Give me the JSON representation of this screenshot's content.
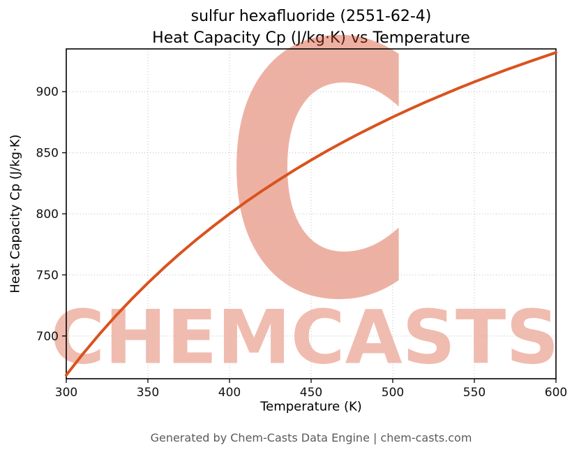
{
  "footer": "Generated by Chem-Casts Data Engine | chem-casts.com",
  "watermark": {
    "letter": "C",
    "text": "CHEMCASTS",
    "letter_color": "rgba(213,70,35,0.42)",
    "text_color": "rgba(213,70,35,0.36)"
  },
  "chart_data": {
    "type": "line",
    "title_line1": "sulfur hexafluoride (2551-62-4)",
    "title_line2": "Heat Capacity Cp (J/kg·K) vs Temperature",
    "xlabel": "Temperature (K)",
    "ylabel": "Heat Capacity Cp (J/kg·K)",
    "xlim": [
      300,
      600
    ],
    "ylim": [
      665,
      935
    ],
    "x_ticks": [
      300,
      350,
      400,
      450,
      500,
      550,
      600
    ],
    "y_ticks": [
      700,
      750,
      800,
      850,
      900
    ],
    "grid": true,
    "legend": "none",
    "line_color": "#d9531e",
    "line_width": 4,
    "series": [
      {
        "name": "Heat Capacity Cp",
        "x": [
          300,
          310,
          320,
          330,
          340,
          350,
          360,
          370,
          380,
          390,
          400,
          410,
          420,
          430,
          440,
          450,
          460,
          470,
          480,
          490,
          500,
          510,
          520,
          530,
          540,
          550,
          560,
          570,
          580,
          590,
          600
        ],
        "y": [
          668.0,
          685.0,
          701.0,
          716.0,
          730.1,
          743.4,
          756.0,
          767.9,
          779.2,
          789.8,
          800.0,
          809.7,
          818.9,
          827.6,
          836.0,
          844.0,
          851.7,
          859.0,
          866.0,
          872.7,
          879.2,
          885.4,
          891.4,
          897.1,
          902.7,
          908.0,
          913.1,
          918.1,
          922.9,
          927.5,
          932.0
        ]
      }
    ]
  }
}
